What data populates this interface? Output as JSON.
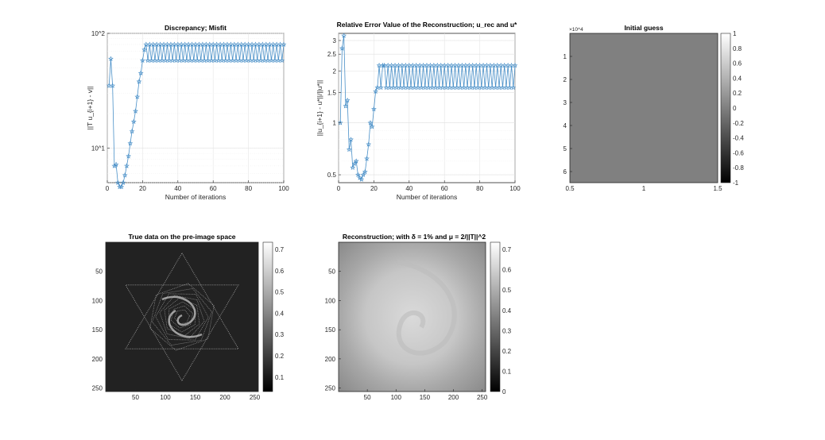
{
  "chart_data": [
    {
      "id": "discrepancy",
      "type": "line",
      "title": "Discrepancy; Misfit",
      "xlabel": "Number of iterations",
      "ylabel": "||T u_{i+1} - v||",
      "yscale": "log",
      "xlim": [
        0,
        100
      ],
      "ylim": [
        5,
        100
      ],
      "xticks": [
        0,
        20,
        40,
        60,
        80,
        100
      ],
      "yticks": [
        {
          "value": 10,
          "label": "10^1"
        },
        {
          "value": 100,
          "label": "10^2"
        }
      ],
      "grid": true,
      "marker": "star",
      "color": "#4a90c8",
      "series": [
        {
          "x": [
            1,
            2,
            3,
            4,
            5,
            6,
            7,
            8,
            9,
            10,
            11,
            12,
            13,
            14,
            15,
            16,
            17,
            18,
            19,
            20,
            21,
            22,
            23,
            24,
            25
          ],
          "y": [
            35,
            60,
            35,
            7,
            7.2,
            5,
            4.6,
            4.6,
            5,
            5.8,
            7,
            8.5,
            11,
            14,
            17,
            21,
            28,
            38,
            45,
            58,
            72,
            80,
            58,
            80,
            58
          ]
        }
      ],
      "oscillation": {
        "from": 25,
        "to": 100,
        "high": 80,
        "low": 58
      }
    },
    {
      "id": "relerror",
      "type": "line",
      "title": "Relative Error Value of the Reconstruction; u_rec and u*",
      "xlabel": "Number of iterations",
      "ylabel": "||u_{i+1} - u*||/||u*||",
      "yscale": "log",
      "xlim": [
        0,
        100
      ],
      "ylim": [
        0.45,
        3.3
      ],
      "xticks": [
        0,
        20,
        40,
        60,
        80,
        100
      ],
      "yticks": [
        {
          "value": 0.5,
          "label": "0.5"
        },
        {
          "value": 1,
          "label": "1"
        },
        {
          "value": 1.5,
          "label": "1.5"
        },
        {
          "value": 2,
          "label": "2"
        },
        {
          "value": 2.5,
          "label": "2.5"
        },
        {
          "value": 3,
          "label": "3"
        }
      ],
      "grid": true,
      "marker": "star",
      "color": "#4a90c8",
      "series": [
        {
          "x": [
            1,
            2,
            3,
            4,
            5,
            6,
            7,
            8,
            9,
            10,
            11,
            12,
            13,
            14,
            15,
            16,
            17,
            18,
            19,
            20,
            21,
            22,
            23,
            24,
            25
          ],
          "y": [
            1,
            2.7,
            3.2,
            1.25,
            1.35,
            0.7,
            0.8,
            0.55,
            0.58,
            0.6,
            0.5,
            0.48,
            0.47,
            0.5,
            0.52,
            0.62,
            0.75,
            1,
            0.95,
            1.2,
            1.52,
            1.6,
            2.15,
            1.6,
            2.15
          ]
        }
      ],
      "oscillation": {
        "from": 25,
        "to": 100,
        "high": 2.15,
        "low": 1.6
      }
    },
    {
      "id": "initial",
      "type": "heatmap",
      "title": "Initial guess",
      "xlim": [
        0.5,
        1.5
      ],
      "xticks": [
        "0.5",
        "1",
        "1.5"
      ],
      "yticks": [
        "1",
        "2",
        "3",
        "4",
        "5",
        "6"
      ],
      "yexponent": "×10^4",
      "colorbar": {
        "min": -1,
        "max": 1,
        "ticks": [
          "1",
          "0.8",
          "0.6",
          "0.4",
          "0.2",
          "0",
          "-0.2",
          "-0.4",
          "-0.6",
          "-0.8",
          "-1"
        ]
      },
      "fill_value": 0
    },
    {
      "id": "truedata",
      "type": "heatmap",
      "title": "True data on the pre-image space",
      "xticks": [
        "50",
        "100",
        "150",
        "200",
        "250"
      ],
      "yticks": [
        "50",
        "100",
        "150",
        "200",
        "250"
      ],
      "colorbar": {
        "min": 0.03,
        "max": 0.74,
        "ticks": [
          "0.7",
          "0.6",
          "0.5",
          "0.4",
          "0.3",
          "0.2",
          "0.1"
        ]
      }
    },
    {
      "id": "recon",
      "type": "heatmap",
      "title": "Reconstruction; with δ = 1% and μ = 2/||T||^2",
      "xticks": [
        "50",
        "100",
        "150",
        "200",
        "250"
      ],
      "yticks": [
        "50",
        "100",
        "150",
        "200",
        "250"
      ],
      "colorbar": {
        "min": 0,
        "max": 0.74,
        "ticks": [
          "0.7",
          "0.6",
          "0.5",
          "0.4",
          "0.3",
          "0.2",
          "0.1",
          "0"
        ]
      }
    }
  ]
}
